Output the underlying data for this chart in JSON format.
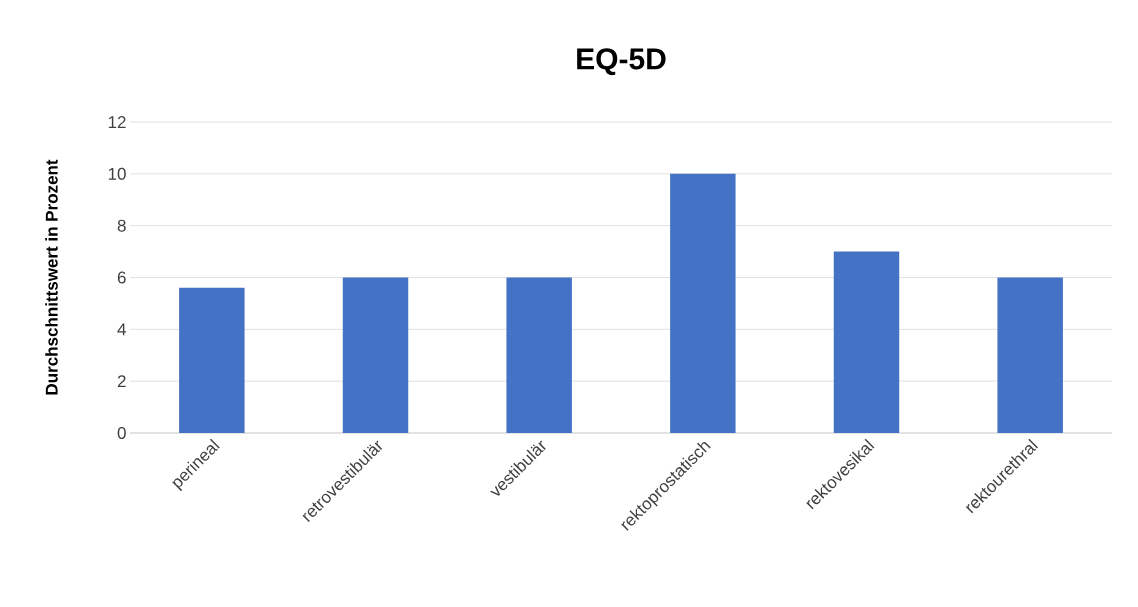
{
  "chart_data": {
    "type": "bar",
    "title": "EQ-5D",
    "ylabel": "Durchschnittswert in Prozent",
    "categories": [
      "perineal",
      "retrovestibulär",
      "vestibulär",
      "rektoprostatisch",
      "rektovesikal",
      "rektourethral"
    ],
    "values": [
      5.6,
      6,
      6,
      10,
      7,
      6
    ],
    "color": "#4472c4",
    "ylim": [
      0,
      12
    ],
    "yticks": [
      0,
      2,
      4,
      6,
      8,
      10,
      12
    ],
    "grid": "y"
  }
}
